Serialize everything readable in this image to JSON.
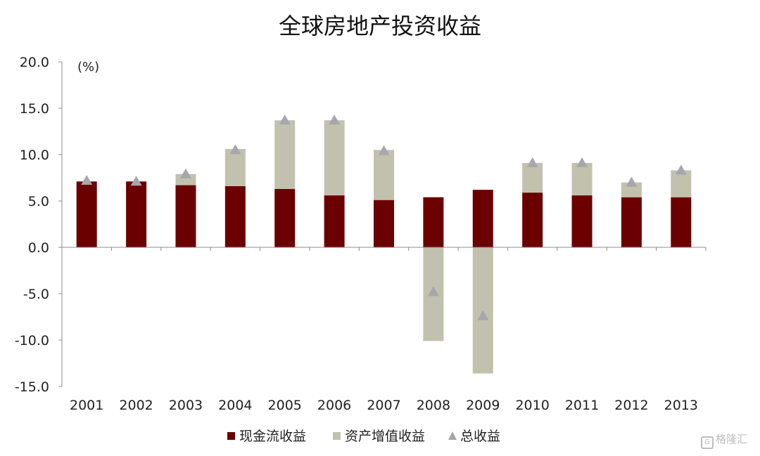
{
  "chart_data": {
    "type": "bar",
    "stacked": true,
    "title": "全球房地产投资收益",
    "unit_label": "(%)",
    "categories": [
      "2001",
      "2002",
      "2003",
      "2004",
      "2005",
      "2006",
      "2007",
      "2008",
      "2009",
      "2010",
      "2011",
      "2012",
      "2013"
    ],
    "series": [
      {
        "name": "现金流收益",
        "kind": "bar",
        "color": "#6b0000",
        "values": [
          7.1,
          7.1,
          6.7,
          6.6,
          6.3,
          5.6,
          5.1,
          5.4,
          6.2,
          5.9,
          5.6,
          5.4,
          5.4
        ]
      },
      {
        "name": "资产增值收益",
        "kind": "bar",
        "color": "#c2c1ae",
        "values": [
          0.0,
          0.0,
          1.2,
          4.0,
          7.4,
          8.1,
          5.4,
          -10.1,
          -13.6,
          3.2,
          3.5,
          1.6,
          2.9
        ]
      },
      {
        "name": "总收益",
        "kind": "marker",
        "marker": "triangle",
        "color": "#a6a6ad",
        "values": [
          7.2,
          7.1,
          7.9,
          10.5,
          13.7,
          13.7,
          10.4,
          -4.8,
          -7.4,
          9.1,
          9.1,
          7.0,
          8.3
        ]
      }
    ],
    "y_ticks": [
      "20.0",
      "15.0",
      "10.0",
      "5.0",
      "0.0",
      "-5.0",
      "-10.0",
      "-15.0"
    ],
    "ylim": [
      -15,
      20
    ],
    "legend_position": "bottom",
    "grid": false
  },
  "watermark": {
    "icon_text": "G",
    "text": "格隆汇"
  }
}
